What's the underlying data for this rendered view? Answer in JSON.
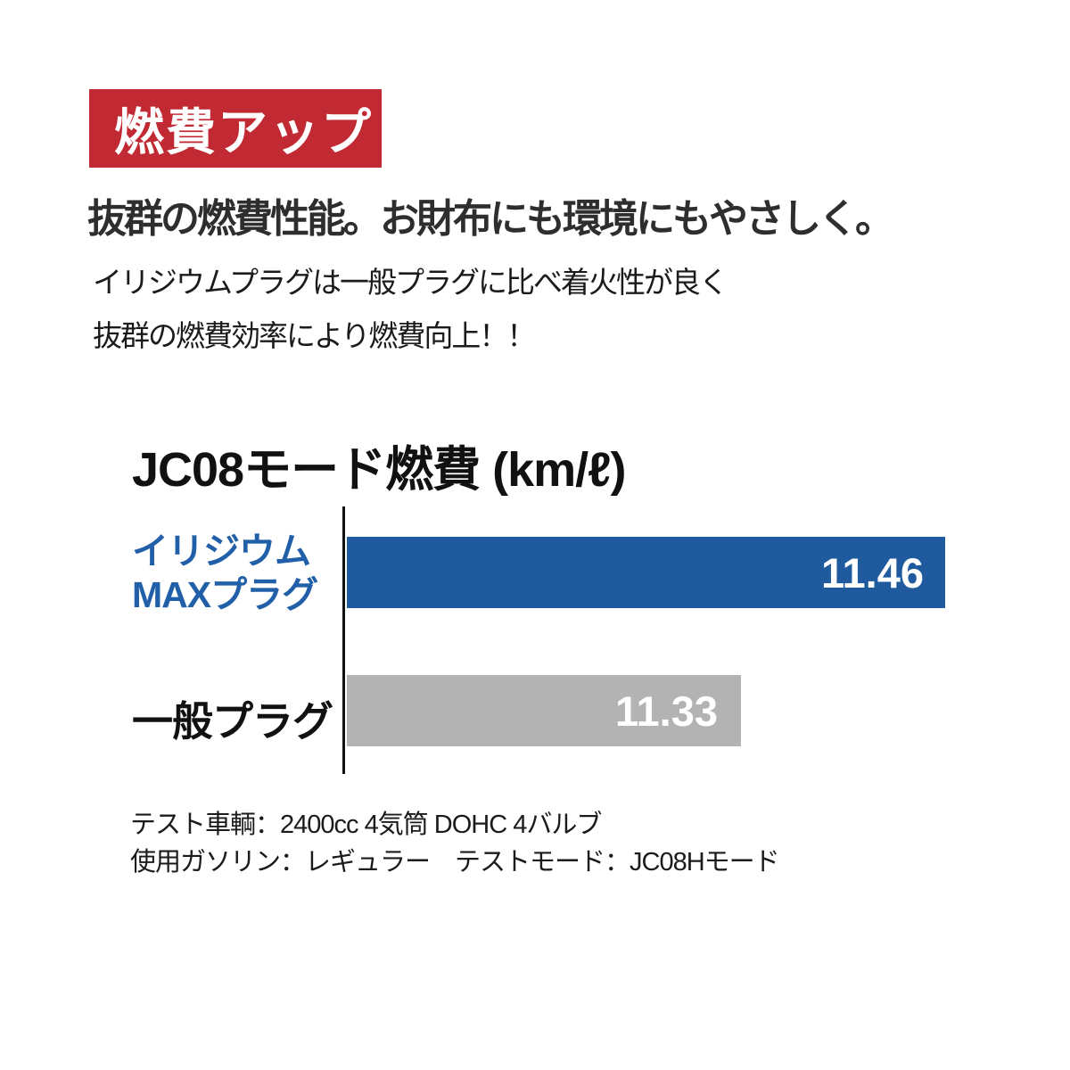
{
  "badge": {
    "label": "燃費アップ",
    "bg_color": "#c12a32",
    "text_color": "#ffffff"
  },
  "headline": "抜群の燃費性能。お財布にも環境にもやさしく。",
  "description_lines": [
    "イリジウムプラグは一般プラグに比べ着火性が良く",
    "抜群の燃費効率により燃費向上！！"
  ],
  "chart_data": {
    "type": "bar",
    "orientation": "horizontal",
    "title": "JC08モード燃費 (km/ℓ)",
    "unit": "km/ℓ",
    "categories": [
      "イリジウムMAXプラグ",
      "一般プラグ"
    ],
    "values": [
      11.46,
      11.33
    ],
    "value_labels": [
      "11.46",
      "11.33"
    ],
    "bar_colors": [
      "#1f5a9e",
      "#b3b3b3"
    ],
    "value_label_color": "#ffffff",
    "value_label_position": "inside-right",
    "axis_line_color": "#111111",
    "grid": false,
    "legend": false,
    "xlim_implied": [
      11.08,
      11.46
    ]
  },
  "bars": [
    {
      "label_lines": [
        "イリジウム",
        "MAXプラグ"
      ],
      "value": "11.46",
      "color": "#1f5a9e",
      "label_color": "#2160a8"
    },
    {
      "label_lines": [
        "一般プラグ"
      ],
      "value": "11.33",
      "color": "#b3b3b3",
      "label_color": "#111111"
    }
  ],
  "footnotes": [
    "テスト車輌：2400cc 4気筒 DOHC 4バルブ",
    "使用ガソリン：レギュラー　テストモード：JC08Hモード"
  ],
  "colors": {
    "accent_red": "#c12a32",
    "iridium_blue": "#1f5a9e",
    "normal_gray": "#b3b3b3",
    "text_dark": "#1b1b1b",
    "background": "#ffffff"
  }
}
